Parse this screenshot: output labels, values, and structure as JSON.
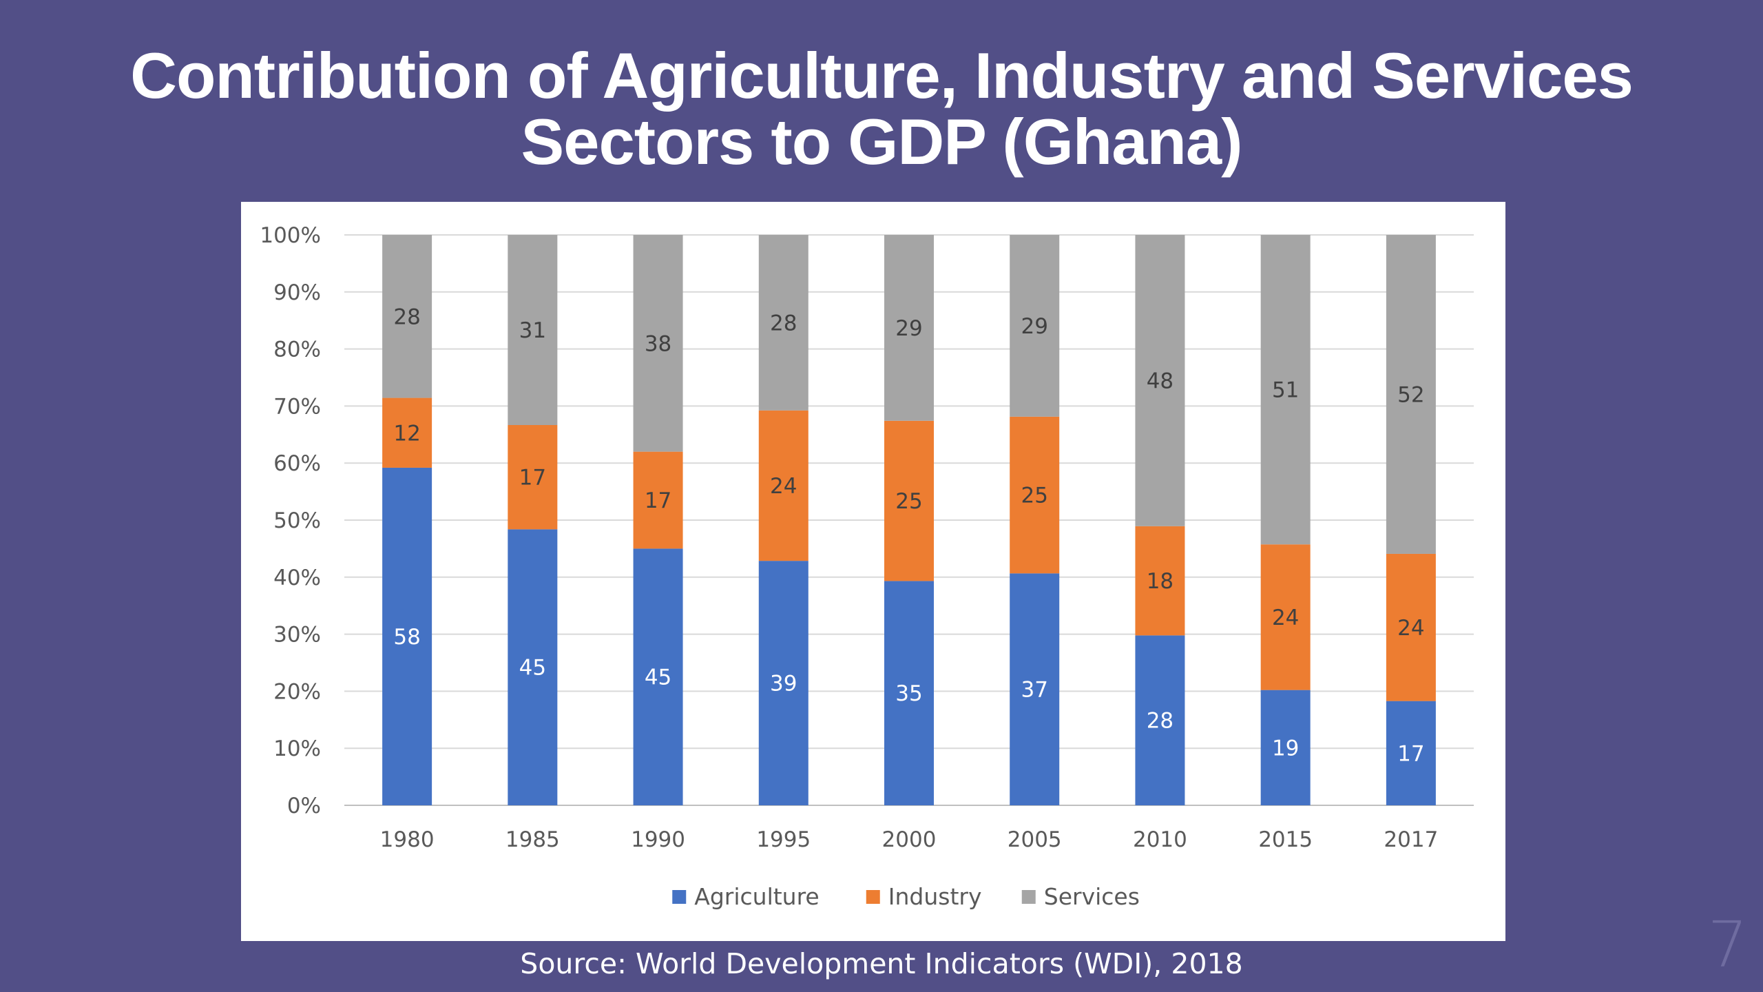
{
  "slide": {
    "title_line1": "Contribution of Agriculture, Industry and Services",
    "title_line2": "Sectors to GDP (Ghana)",
    "source": "Source: World Development Indicators (WDI), 2018",
    "page_number": "7"
  },
  "colors": {
    "background": "#524f87",
    "agriculture": "#4472c4",
    "industry": "#ed7d31",
    "services": "#a5a5a5"
  },
  "chart_data": {
    "type": "bar",
    "stacked": "percent",
    "categories": [
      "1980",
      "1985",
      "1990",
      "1995",
      "2000",
      "2005",
      "2010",
      "2015",
      "2017"
    ],
    "series": [
      {
        "name": "Agriculture",
        "color": "#4472c4",
        "label_color": "#ffffff",
        "values": [
          58,
          45,
          45,
          39,
          35,
          37,
          28,
          19,
          17
        ]
      },
      {
        "name": "Industry",
        "color": "#ed7d31",
        "label_color": "#404040",
        "values": [
          12,
          17,
          17,
          24,
          25,
          25,
          18,
          24,
          24
        ]
      },
      {
        "name": "Services",
        "color": "#a5a5a5",
        "label_color": "#404040",
        "values": [
          28,
          31,
          38,
          28,
          29,
          29,
          48,
          51,
          52
        ]
      }
    ],
    "y_ticks": [
      "0%",
      "10%",
      "20%",
      "30%",
      "40%",
      "50%",
      "60%",
      "70%",
      "80%",
      "90%",
      "100%"
    ],
    "ylim": [
      0,
      100
    ],
    "grid": true,
    "legend": "bottom"
  }
}
